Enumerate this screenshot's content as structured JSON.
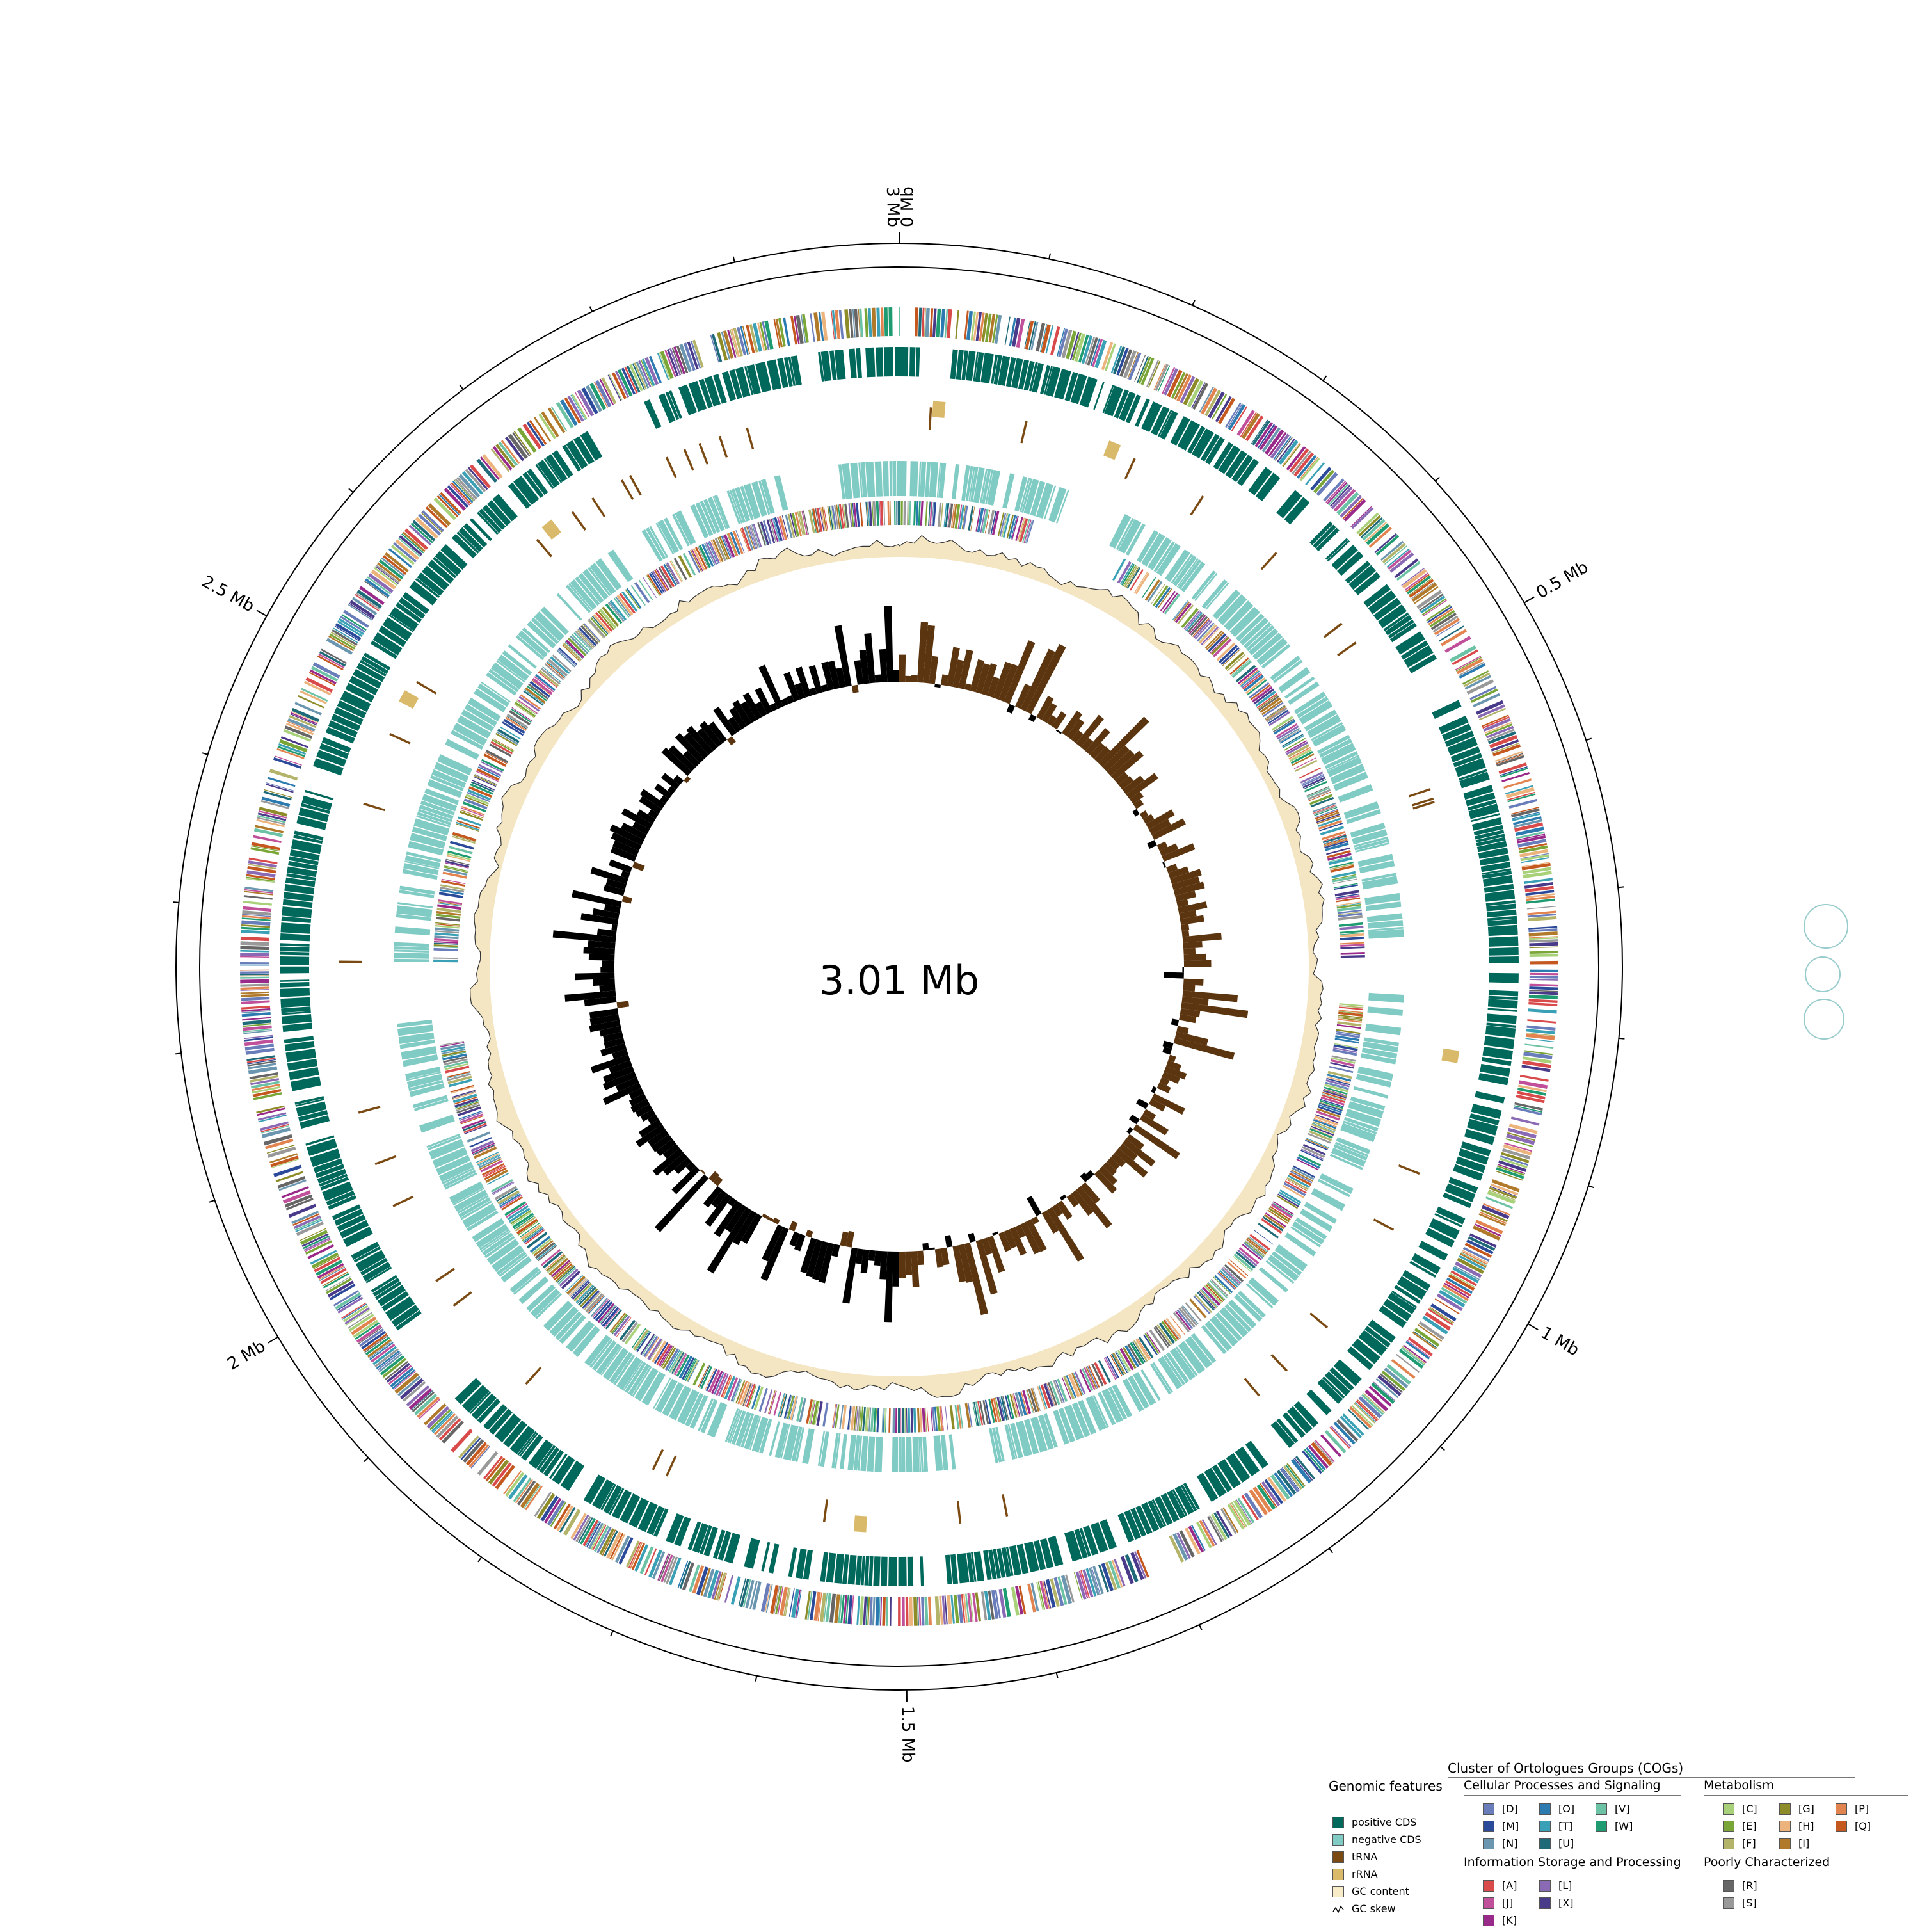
{
  "map": {
    "total_length_label": "3.01 Mb",
    "genome_length_mb": 3.01,
    "ticks": [
      {
        "label": "0 Mb",
        "pos_mb": 0.0
      },
      {
        "label": "3 Mb",
        "pos_mb": 3.0
      },
      {
        "label": "0.5 Mb",
        "pos_mb": 0.5
      },
      {
        "label": "1 Mb",
        "pos_mb": 1.0
      },
      {
        "label": "1.5 Mb",
        "pos_mb": 1.5
      },
      {
        "label": "2 Mb",
        "pos_mb": 2.0
      },
      {
        "label": "2.5 Mb",
        "pos_mb": 2.5
      }
    ],
    "colors": {
      "positive_cds": "#00695c",
      "negative_cds": "#80cbc4",
      "trna": "#7b4a12",
      "rrna": "#d9b96a",
      "gc_content": "#f5e6c3",
      "gc_skew_positive": "#5b3510",
      "gc_skew_negative": "#000000"
    }
  },
  "legend": {
    "genomic": {
      "title": "Genomic features",
      "items": [
        {
          "label": "positive CDS",
          "color": "#00695c"
        },
        {
          "label": "negative CDS",
          "color": "#80cbc4"
        },
        {
          "label": "tRNA",
          "color": "#7b4a12"
        },
        {
          "label": "rRNA",
          "color": "#d9b96a"
        },
        {
          "label": "GC content",
          "color": "#f8ecc8"
        },
        {
          "label": "GC skew",
          "icon": "gc-skew-icon"
        }
      ]
    },
    "cog": {
      "title": "Cluster of Ortologues Groups (COGs)",
      "groups": [
        {
          "title": "Cellular Processes and Signaling",
          "items": [
            {
              "label": "[D]",
              "color": "#6a7dbb"
            },
            {
              "label": "[M]",
              "color": "#2c4a9a"
            },
            {
              "label": "[N]",
              "color": "#6b96b0"
            },
            {
              "label": "[O]",
              "color": "#2b7bb0"
            },
            {
              "label": "[T]",
              "color": "#3aa0b5"
            },
            {
              "label": "[U]",
              "color": "#1e6a78"
            },
            {
              "label": "[V]",
              "color": "#6cc2a5"
            },
            {
              "label": "[W]",
              "color": "#1f9b72"
            }
          ]
        },
        {
          "title": "Metabolism",
          "items": [
            {
              "label": "[C]",
              "color": "#a9d17a"
            },
            {
              "label": "[E]",
              "color": "#7aa638"
            },
            {
              "label": "[F]",
              "color": "#b3b36a"
            },
            {
              "label": "[G]",
              "color": "#8e8c28"
            },
            {
              "label": "[H]",
              "color": "#ecb47c"
            },
            {
              "label": "[I]",
              "color": "#b07a2a"
            },
            {
              "label": "[P]",
              "color": "#e2844f"
            },
            {
              "label": "[Q]",
              "color": "#c4581f"
            }
          ]
        },
        {
          "title": "Information Storage and Processing",
          "items": [
            {
              "label": "[A]",
              "color": "#d94a4a"
            },
            {
              "label": "[J]",
              "color": "#c0509a"
            },
            {
              "label": "[K]",
              "color": "#9a2a8a"
            },
            {
              "label": "[L]",
              "color": "#8a6ab5"
            },
            {
              "label": "[X]",
              "color": "#4a3a8a"
            }
          ]
        },
        {
          "title": "Poorly Characterized",
          "items": [
            {
              "label": "[R]",
              "color": "#666666"
            },
            {
              "label": "[S]",
              "color": "#999999"
            }
          ]
        }
      ]
    }
  }
}
